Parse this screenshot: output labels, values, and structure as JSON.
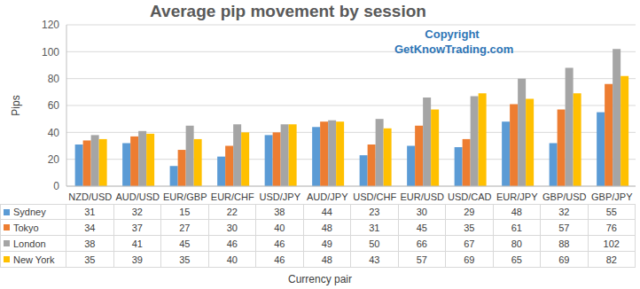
{
  "chart_data": {
    "type": "bar",
    "title": "Average pip movement by session",
    "x_label": "Currency pair",
    "y_label": "Pips",
    "annotations": [
      "Copyright",
      "GetKnowTrading.com"
    ],
    "categories": [
      "NZD/USD",
      "AUD/USD",
      "EUR/GBP",
      "EUR/CHF",
      "USD/JPY",
      "AUD/JPY",
      "USD/CHF",
      "EUR/USD",
      "USD/CAD",
      "EUR/JPY",
      "GBP/USD",
      "GBP/JPY"
    ],
    "series": [
      {
        "name": "Sydney",
        "color": "#5b9bd5",
        "values": [
          31,
          32,
          15,
          22,
          38,
          44,
          23,
          30,
          29,
          48,
          32,
          55
        ]
      },
      {
        "name": "Tokyo",
        "color": "#ed7d31",
        "values": [
          34,
          37,
          27,
          30,
          40,
          48,
          31,
          45,
          35,
          61,
          57,
          76
        ]
      },
      {
        "name": "London",
        "color": "#a5a5a5",
        "values": [
          38,
          41,
          45,
          46,
          46,
          49,
          50,
          66,
          67,
          80,
          88,
          102
        ]
      },
      {
        "name": "New York",
        "color": "#ffc000",
        "values": [
          35,
          39,
          35,
          40,
          46,
          48,
          43,
          57,
          69,
          65,
          69,
          82
        ]
      }
    ],
    "ylim": [
      0,
      120
    ],
    "yticks": [
      0,
      20,
      40,
      60,
      80,
      100,
      120
    ],
    "grid": true
  }
}
